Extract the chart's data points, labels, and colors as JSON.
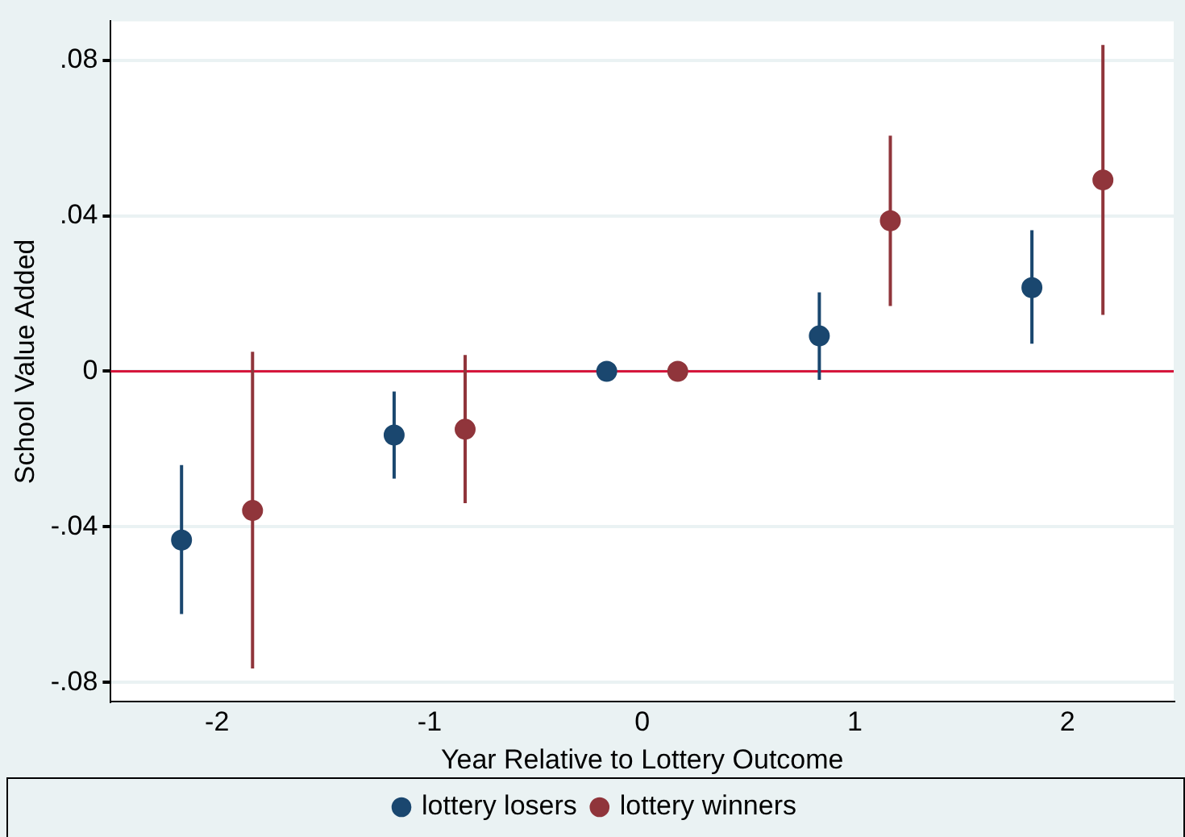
{
  "chart_data": {
    "type": "scatter",
    "xlabel": "Year Relative to Lottery Outcome",
    "ylabel": "School Value Added",
    "xlim": [
      -2.5,
      2.5
    ],
    "xticks": [
      -2,
      -1,
      0,
      1,
      2
    ],
    "ylim": [
      -0.085,
      0.09
    ],
    "yticks": [
      {
        "value": -0.08,
        "label": "-.08"
      },
      {
        "value": -0.04,
        "label": "-.04"
      },
      0,
      {
        "value": 0.04,
        "label": ".04"
      },
      {
        "value": 0.08,
        "label": ".08"
      }
    ],
    "grid": "y",
    "legend": "bottom",
    "marker": "circle",
    "ref_lines": [
      {
        "axis": "y",
        "value": 0,
        "color": "#d6163c"
      }
    ],
    "series": [
      {
        "name": "lottery losers",
        "color": "#1a476f",
        "x": [
          -2.167,
          -1.167,
          -0.167,
          0.833,
          1.833
        ],
        "values": [
          -0.0434,
          -0.0164,
          0,
          0.0091,
          0.0215
        ],
        "errors": [
          [
            -0.0624,
            -0.0241
          ],
          [
            -0.0276,
            -0.0052
          ],
          null,
          [
            -0.0022,
            0.0203
          ],
          [
            0.0071,
            0.0363
          ]
        ]
      },
      {
        "name": "lottery winners",
        "color": "#90353b",
        "x": [
          -1.833,
          -0.833,
          0.167,
          1.167,
          2.167
        ],
        "values": [
          -0.0358,
          -0.0149,
          0,
          0.0387,
          0.0492
        ],
        "errors": [
          [
            -0.0764,
            0.005
          ],
          [
            -0.0339,
            0.0042
          ],
          null,
          [
            0.0168,
            0.0606
          ],
          [
            0.0145,
            0.0839
          ]
        ]
      }
    ]
  }
}
